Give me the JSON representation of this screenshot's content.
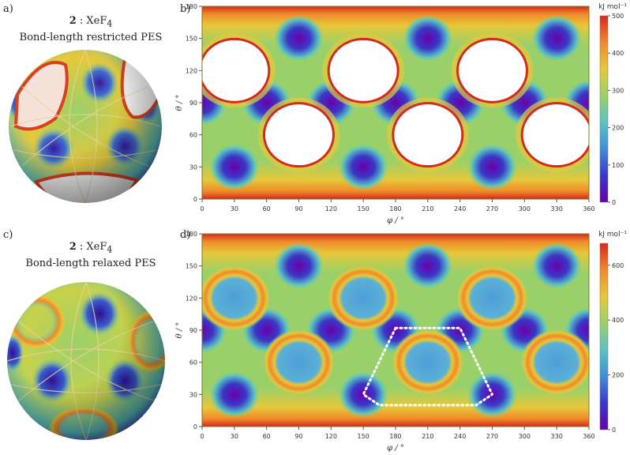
{
  "panels": {
    "a": {
      "letter": "a)",
      "compound": "2",
      "sep": ":",
      "formula_main": "XeF",
      "formula_sub": "4",
      "subtitle": "Bond-length restricted PES"
    },
    "b": {
      "letter": "b)"
    },
    "c": {
      "letter": "c)",
      "compound": "2",
      "sep": ":",
      "formula_main": "XeF",
      "formula_sub": "4",
      "subtitle": "Bond-length relaxed PES"
    },
    "d": {
      "letter": "d)"
    }
  },
  "colors": {
    "colormap": [
      "#6a00a8",
      "#3a37c8",
      "#3f8fd6",
      "#59c3c3",
      "#9ad06a",
      "#e6c83a",
      "#f08a2a",
      "#d42a1c"
    ],
    "frame": "#7a7a2a",
    "dotted_outline": "#ffffff"
  },
  "chart_data": [
    {
      "type": "heatmap",
      "name": "Bond-length restricted PES",
      "xlabel": "φ / °",
      "ylabel": "θ / °",
      "xlim": [
        0,
        360
      ],
      "ylim": [
        0,
        180
      ],
      "x_ticks": [
        0,
        30,
        60,
        90,
        120,
        150,
        180,
        210,
        240,
        270,
        300,
        330,
        360
      ],
      "y_ticks": [
        0,
        30,
        60,
        90,
        120,
        150,
        180
      ],
      "colorbar_label": "kJ mol⁻¹",
      "colorbar_range": [
        0,
        500
      ],
      "colorbar_ticks": [
        0,
        100,
        200,
        300,
        400,
        500
      ],
      "minima": [
        [
          30,
          30
        ],
        [
          150,
          30
        ],
        [
          270,
          30
        ],
        [
          0,
          90
        ],
        [
          60,
          90
        ],
        [
          120,
          90
        ],
        [
          180,
          90
        ],
        [
          240,
          90
        ],
        [
          300,
          90
        ],
        [
          360,
          90
        ],
        [
          90,
          150
        ],
        [
          210,
          150
        ],
        [
          330,
          150
        ]
      ],
      "excluded_regions_centers": [
        [
          30,
          120
        ],
        [
          150,
          120
        ],
        [
          270,
          120
        ],
        [
          90,
          60
        ],
        [
          210,
          60
        ],
        [
          330,
          60
        ]
      ]
    },
    {
      "type": "heatmap",
      "name": "Bond-length relaxed PES",
      "xlabel": "φ / °",
      "ylabel": "θ / °",
      "xlim": [
        0,
        360
      ],
      "ylim": [
        0,
        180
      ],
      "x_ticks": [
        0,
        30,
        60,
        90,
        120,
        150,
        180,
        210,
        240,
        270,
        300,
        330,
        360
      ],
      "y_ticks": [
        0,
        30,
        60,
        90,
        120,
        150,
        180
      ],
      "colorbar_label": "kJ mol⁻¹",
      "colorbar_range": [
        0,
        680
      ],
      "colorbar_ticks": [
        0,
        200,
        400,
        600
      ],
      "minima": [
        [
          30,
          30
        ],
        [
          150,
          30
        ],
        [
          270,
          30
        ],
        [
          0,
          90
        ],
        [
          60,
          90
        ],
        [
          120,
          90
        ],
        [
          180,
          90
        ],
        [
          240,
          90
        ],
        [
          300,
          90
        ],
        [
          360,
          90
        ],
        [
          90,
          150
        ],
        [
          210,
          150
        ],
        [
          330,
          150
        ]
      ],
      "ring_centers": [
        [
          30,
          120
        ],
        [
          150,
          120
        ],
        [
          270,
          120
        ],
        [
          90,
          60
        ],
        [
          210,
          60
        ],
        [
          330,
          60
        ]
      ],
      "highlight_path": [
        [
          180,
          92
        ],
        [
          240,
          92
        ],
        [
          270,
          30
        ],
        [
          255,
          20
        ],
        [
          165,
          20
        ],
        [
          150,
          30
        ]
      ]
    }
  ]
}
